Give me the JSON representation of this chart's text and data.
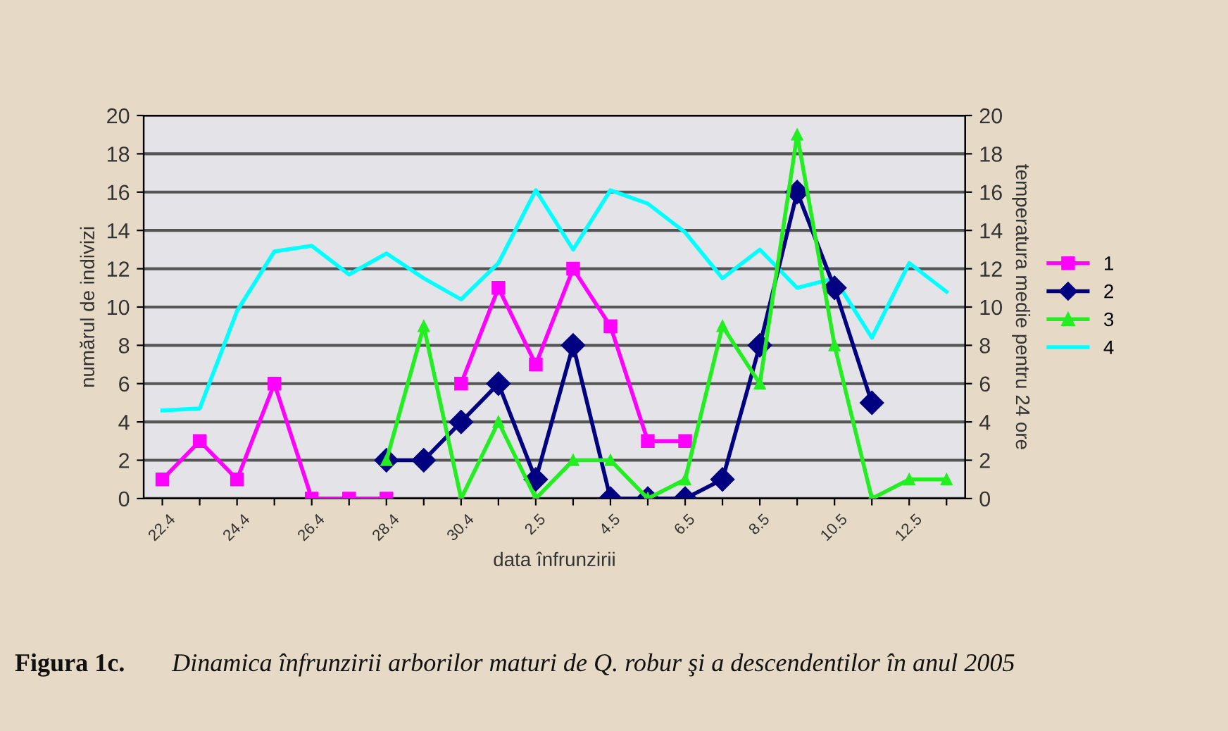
{
  "chart_data": {
    "type": "line",
    "xlabel": "data înfrunzirii",
    "ylabel": "numărul de indivizi",
    "y2label": "temperatura medie pentru 24 ore",
    "categories": [
      "22.4",
      null,
      "24.4",
      null,
      "26.4",
      null,
      "28.4",
      null,
      "30.4",
      null,
      "2.5",
      null,
      "4.5",
      null,
      "6.5",
      null,
      "8.5",
      null,
      "10.5",
      null,
      "12.5",
      null
    ],
    "series": [
      {
        "name": "1",
        "color": "#ff00ff",
        "marker": "square",
        "values": [
          1,
          3,
          1,
          6,
          0,
          0,
          0,
          null,
          6,
          11,
          7,
          12,
          9,
          3,
          3,
          null,
          null,
          null,
          null,
          null,
          null,
          null
        ]
      },
      {
        "name": "2",
        "color": "#000080",
        "marker": "diamond",
        "values": [
          null,
          null,
          null,
          null,
          null,
          null,
          2,
          2,
          4,
          6,
          1,
          8,
          0,
          0,
          0,
          1,
          8,
          16,
          11,
          5,
          null,
          null
        ]
      },
      {
        "name": "3",
        "color": "#22ee22",
        "marker": "triangle",
        "values": [
          null,
          null,
          null,
          null,
          null,
          null,
          2,
          9,
          0,
          4,
          0,
          2,
          2,
          0,
          1,
          9,
          6,
          19,
          8,
          0,
          1,
          1
        ]
      },
      {
        "name": "4",
        "color": "#00ffff",
        "marker": "none",
        "axis": "y2",
        "values": [
          4.6,
          4.7,
          9.8,
          12.9,
          13.2,
          11.7,
          12.8,
          11.5,
          10.4,
          12.3,
          16.1,
          13,
          16.1,
          15.4,
          13.9,
          11.5,
          13,
          11,
          11.5,
          8.4,
          12.3,
          10.8
        ]
      }
    ],
    "ylim": [
      0,
      20
    ],
    "yticks": [
      0,
      2,
      4,
      6,
      8,
      10,
      12,
      14,
      16,
      18,
      20
    ],
    "y2lim": [
      0,
      20
    ],
    "y2ticks": [
      0,
      2,
      4,
      6,
      8,
      10,
      12,
      14,
      16,
      18,
      20
    ],
    "grid": true,
    "legend": "right",
    "annotations": [
      "Figura 1c.",
      "Dinamica înfrunzirii arborilor maturi de Q. robur şi a descendentilor în anul 2005"
    ]
  }
}
